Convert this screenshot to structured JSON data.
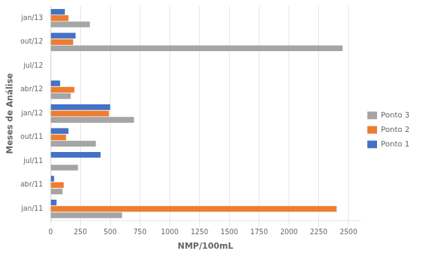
{
  "chart_data": {
    "type": "bar",
    "orientation": "horizontal",
    "categories": [
      "jan/11",
      "abr/11",
      "jul/11",
      "out/11",
      "jan/12",
      "abr/12",
      "jul/12",
      "out/12",
      "jan/13"
    ],
    "series": [
      {
        "name": "Ponto 1",
        "color": "#4472C4",
        "values": [
          50,
          30,
          420,
          150,
          500,
          80,
          0,
          210,
          120
        ]
      },
      {
        "name": "Ponto 2",
        "color": "#ED7D31",
        "values": [
          2400,
          110,
          0,
          130,
          490,
          200,
          0,
          190,
          150
        ]
      },
      {
        "name": "Ponto 3",
        "color": "#A5A5A5",
        "values": [
          600,
          100,
          230,
          380,
          700,
          170,
          0,
          2450,
          330
        ]
      }
    ],
    "xlabel": "NMP/100mL",
    "ylabel": "Meses de Análise",
    "xlim": [
      0,
      2600
    ],
    "xticks": [
      0,
      250,
      500,
      750,
      1000,
      1250,
      1500,
      1750,
      2000,
      2250,
      2500
    ],
    "grid": "x",
    "legend": "right"
  }
}
